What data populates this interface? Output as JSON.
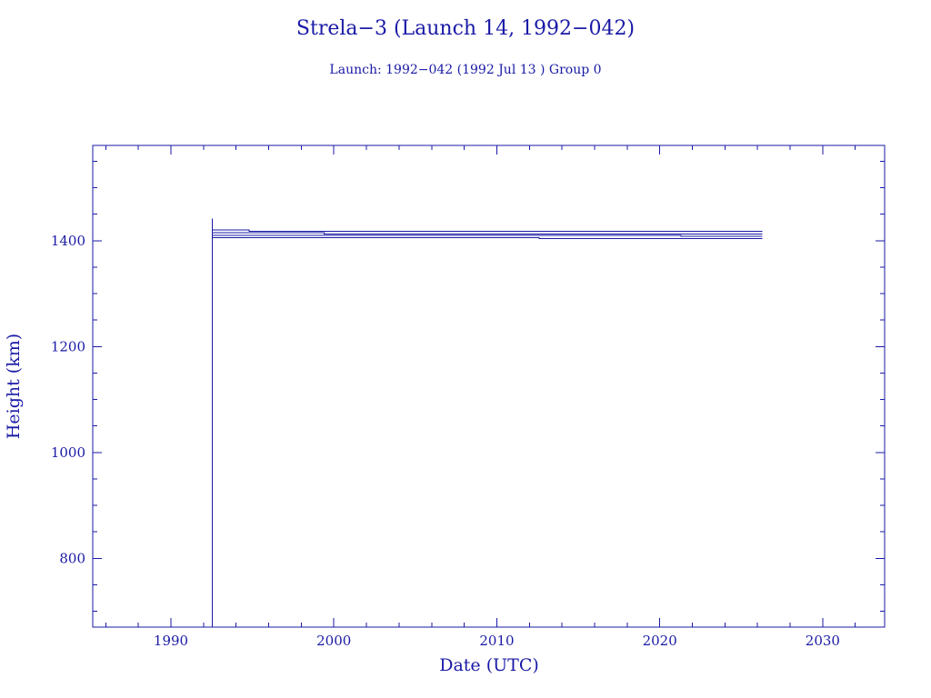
{
  "chart_data": {
    "type": "line",
    "title": "Strela−3 (Launch 14, 1992−042)",
    "subtitle": "Launch: 1992−042  (1992 Jul 13 )  Group 0",
    "xlabel": "Date (UTC)",
    "ylabel": "Height (km)",
    "xlim": [
      1985.2,
      2033.8
    ],
    "ylim": [
      670,
      1580
    ],
    "x_ticks": [
      1990,
      2000,
      2010,
      2020,
      2030
    ],
    "y_ticks": [
      800,
      1000,
      1200,
      1400
    ],
    "x_minor_step": 2,
    "y_minor_step": 50,
    "grid": false,
    "launch_line": {
      "x": 1992.53,
      "y": [
        670,
        1442
      ]
    },
    "series": [
      {
        "x": [
          1992.53,
          1994.8,
          1994.8,
          2026.3
        ],
        "y": [
          1420,
          1420,
          1418,
          1418
        ]
      },
      {
        "x": [
          1992.53,
          1999.4,
          1999.4,
          2026.3
        ],
        "y": [
          1415,
          1415,
          1413,
          1413
        ]
      },
      {
        "x": [
          1992.53,
          2021.3,
          2021.3,
          2026.3
        ],
        "y": [
          1410,
          1410,
          1408,
          1408
        ]
      },
      {
        "x": [
          1992.53,
          2012.6,
          2012.6,
          2026.3
        ],
        "y": [
          1406,
          1406,
          1404,
          1404
        ]
      }
    ]
  }
}
